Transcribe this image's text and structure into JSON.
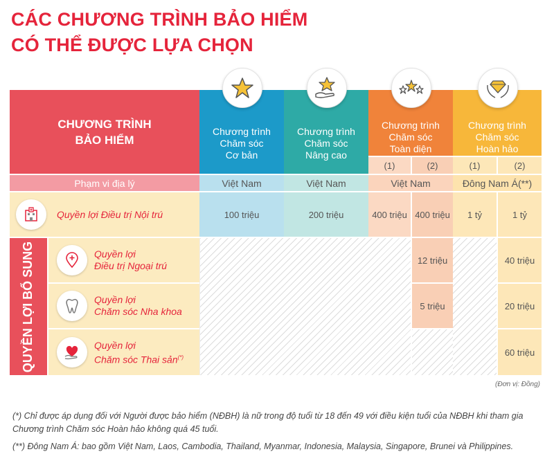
{
  "title": {
    "line1": "CÁC CHƯƠNG TRÌNH BẢO HIỂM",
    "line2": "CÓ THỂ ĐƯỢC LỰA CHỌN"
  },
  "table": {
    "program_header": "CHƯƠNG TRÌNH\nBẢO HIỂM",
    "programs": [
      {
        "name": "Chương trình\nChăm sóc\nCơ bản",
        "icon": "star-icon",
        "color": "#1c9ac9"
      },
      {
        "name": "Chương trình\nChăm sóc\nNâng cao",
        "icon": "hand-star-icon",
        "color": "#2eaaa6"
      },
      {
        "name": "Chương trình\nChăm sóc\nToàn diện",
        "icon": "three-stars-icon",
        "color": "#f0833a"
      },
      {
        "name": "Chương trình\nChăm sóc\nHoàn hảo",
        "icon": "diamond-hands-icon",
        "color": "#f7b73a"
      }
    ],
    "sub_options": [
      "(1)",
      "(2)",
      "(1)",
      "(2)"
    ],
    "geo": {
      "label": "Phạm vi địa lý",
      "values": [
        "Việt Nam",
        "Việt Nam",
        "Việt Nam",
        "Đông Nam Á(**)"
      ]
    },
    "inpatient": {
      "label": "Quyền lợi Điều trị Nội trú",
      "icon": "hospital-icon",
      "values": [
        "100 triệu",
        "200 triệu",
        "400 triệu",
        "400 triệu",
        "1 tỷ",
        "1 tỷ"
      ]
    },
    "supplementary_label": "QUYỀN LỢI BỔ SUNG",
    "supplementary": [
      {
        "label1": "Quyền lợi",
        "label2": "Điều trị Ngoại trú",
        "sup": "",
        "icon": "location-plus-icon",
        "toan_dien_2": "12 triệu",
        "hoan_hao_2": "40 triệu"
      },
      {
        "label1": "Quyền lợi",
        "label2": "Chăm sóc Nha khoa",
        "sup": "",
        "icon": "tooth-icon",
        "toan_dien_2": "5 triệu",
        "hoan_hao_2": "20 triệu"
      },
      {
        "label1": "Quyền lợi",
        "label2": "Chăm sóc Thai sản",
        "sup": "(*)",
        "icon": "heart-hand-icon",
        "toan_dien_2": "",
        "hoan_hao_2": "60 triệu"
      }
    ]
  },
  "unit_note": "(Đơn vị: Đồng)",
  "footnotes": [
    "(*) Chỉ được áp dụng đối với Người được bảo hiểm (NĐBH) là nữ trong độ tuổi từ 18 đến 49 với điều kiện tuổi của NĐBH khi tham gia Chương trình Chăm sóc Hoàn hảo không quá 45 tuổi.",
    "(**) Đông Nam Á: bao gồm Việt Nam, Laos, Cambodia, Thailand, Myanmar, Indonesia, Malaysia, Singapore, Brunei và Philippines."
  ],
  "colors": {
    "red": "#e5243b",
    "blue": "#1c9ac9",
    "teal": "#2eaaa6",
    "orange": "#f0833a",
    "yellow": "#f7b73a"
  }
}
